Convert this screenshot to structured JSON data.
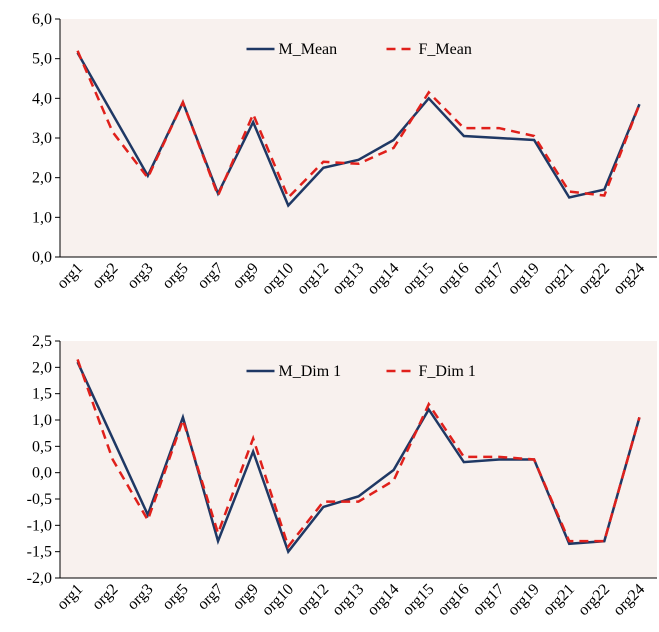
{
  "chart_data": [
    {
      "type": "line",
      "categories": [
        "org1",
        "org2",
        "org3",
        "org5",
        "org7",
        "org9",
        "org10",
        "org12",
        "org13",
        "org14",
        "org15",
        "org16",
        "org17",
        "org19",
        "org21",
        "org22",
        "org24"
      ],
      "series": [
        {
          "name": "M_Mean",
          "color": "#1f3864",
          "dash": false,
          "values": [
            5.15,
            3.6,
            2.05,
            3.9,
            1.6,
            3.4,
            1.3,
            2.25,
            2.45,
            2.95,
            4.0,
            3.05,
            3.0,
            2.95,
            1.5,
            1.7,
            3.85
          ]
        },
        {
          "name": "F_Mean",
          "color": "#e0201b",
          "dash": true,
          "values": [
            5.2,
            3.15,
            2.0,
            3.9,
            1.55,
            3.6,
            1.5,
            2.4,
            2.35,
            2.75,
            4.15,
            3.25,
            3.25,
            3.05,
            1.65,
            1.55,
            3.85
          ]
        }
      ],
      "ylim": [
        0,
        6
      ],
      "yticks": [
        {
          "value": 0,
          "label": "0,0"
        },
        {
          "value": 1,
          "label": "1,0"
        },
        {
          "value": 2,
          "label": "2,0"
        },
        {
          "value": 3,
          "label": "3,0"
        },
        {
          "value": 4,
          "label": "4,0"
        },
        {
          "value": 5,
          "label": "5,0"
        },
        {
          "value": 6,
          "label": "6,0"
        }
      ],
      "legend": "upper center",
      "background": "#f8f1ee"
    },
    {
      "type": "line",
      "categories": [
        "org1",
        "org2",
        "org3",
        "org5",
        "org7",
        "org9",
        "org10",
        "org12",
        "org13",
        "org14",
        "org15",
        "org16",
        "org17",
        "org19",
        "org21",
        "org22",
        "org24"
      ],
      "series": [
        {
          "name": "M_Dim 1",
          "color": "#1f3864",
          "dash": false,
          "values": [
            2.1,
            0.65,
            -0.8,
            1.05,
            -1.3,
            0.4,
            -1.5,
            -0.65,
            -0.45,
            0.05,
            1.2,
            0.2,
            0.25,
            0.25,
            -1.35,
            -1.3,
            1.05
          ]
        },
        {
          "name": "F_Dim 1",
          "color": "#e0201b",
          "dash": true,
          "values": [
            2.15,
            0.25,
            -0.9,
            1.0,
            -1.15,
            0.65,
            -1.4,
            -0.55,
            -0.55,
            -0.15,
            1.3,
            0.3,
            0.3,
            0.25,
            -1.3,
            -1.3,
            1.05
          ]
        }
      ],
      "ylim": [
        -2,
        2.5
      ],
      "yticks": [
        {
          "value": -2,
          "label": "-2,0"
        },
        {
          "value": -1.5,
          "label": "-1,5"
        },
        {
          "value": -1,
          "label": "-1,0"
        },
        {
          "value": -0.5,
          "label": "-0,5"
        },
        {
          "value": 0,
          "label": "0,0"
        },
        {
          "value": 0.5,
          "label": "0,5"
        },
        {
          "value": 1,
          "label": "1,0"
        },
        {
          "value": 1.5,
          "label": "1,5"
        },
        {
          "value": 2,
          "label": "2,0"
        },
        {
          "value": 2.5,
          "label": "2,5"
        }
      ],
      "legend": "upper center",
      "background": "#f8f1ee"
    }
  ]
}
